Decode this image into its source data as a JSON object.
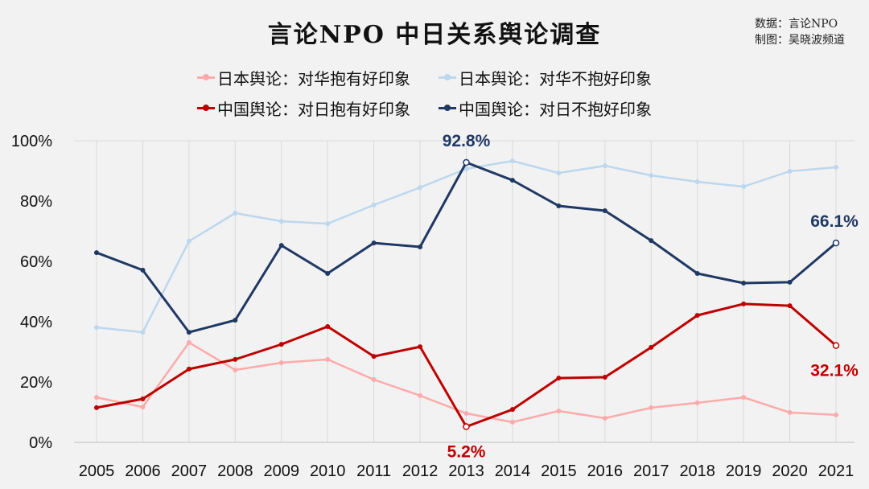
{
  "chart_data": {
    "type": "line",
    "title": "言论NPO 中日关系舆论调查",
    "source_lines": [
      "数据：言论NPO",
      "制图：吴晓波频道"
    ],
    "x": [
      "2005",
      "2006",
      "2007",
      "2008",
      "2009",
      "2010",
      "2011",
      "2012",
      "2013",
      "2014",
      "2015",
      "2016",
      "2017",
      "2018",
      "2019",
      "2020",
      "2021"
    ],
    "ylim": [
      0,
      100
    ],
    "yticks": [
      "0%",
      "20%",
      "40%",
      "60%",
      "80%",
      "100%"
    ],
    "grid": "vertical",
    "legend_position": "top",
    "series": [
      {
        "name": "日本舆论：对华抱有好印象",
        "color": "#ffaaaa",
        "width": 2.5,
        "values": [
          14.9,
          11.7,
          33.1,
          24,
          26.4,
          27.5,
          20.8,
          15.5,
          9.6,
          6.7,
          10.4,
          8,
          11.5,
          13.1,
          14.9,
          9.9,
          9.1
        ]
      },
      {
        "name": "日本舆论：对华不抱好印象",
        "color": "#bdd7ee",
        "width": 2.5,
        "values": [
          38.1,
          36.5,
          66.7,
          76,
          73.3,
          72.5,
          78.7,
          84.5,
          90.7,
          93.3,
          89.3,
          91.7,
          88.5,
          86.4,
          84.8,
          89.9,
          91.2
        ]
      },
      {
        "name": "中国舆论：对日抱有好印象",
        "color": "#c00000",
        "width": 3,
        "values": [
          11.5,
          14.4,
          24.3,
          27.5,
          32.5,
          38.4,
          28.5,
          31.7,
          5.2,
          10.9,
          21.3,
          21.6,
          31.5,
          42.1,
          45.9,
          45.3,
          32.1
        ]
      },
      {
        "name": "中国舆论：对日不抱好印象",
        "color": "#1f3864",
        "width": 3,
        "values": [
          62.9,
          57.1,
          36.5,
          40.5,
          65.3,
          56,
          66.1,
          64.8,
          92.8,
          86.9,
          78.4,
          76.8,
          66.9,
          56,
          52.8,
          53.1,
          66.1
        ]
      }
    ],
    "annotations": [
      {
        "series": 3,
        "x": "2013",
        "text": "92.8%",
        "color": "#1f3864",
        "pos": "above"
      },
      {
        "series": 3,
        "x": "2021",
        "text": "66.1%",
        "color": "#1f3864",
        "pos": "above"
      },
      {
        "series": 2,
        "x": "2013",
        "text": "5.2%",
        "color": "#c00000",
        "pos": "below"
      },
      {
        "series": 2,
        "x": "2021",
        "text": "32.1%",
        "color": "#c00000",
        "pos": "below"
      }
    ]
  }
}
